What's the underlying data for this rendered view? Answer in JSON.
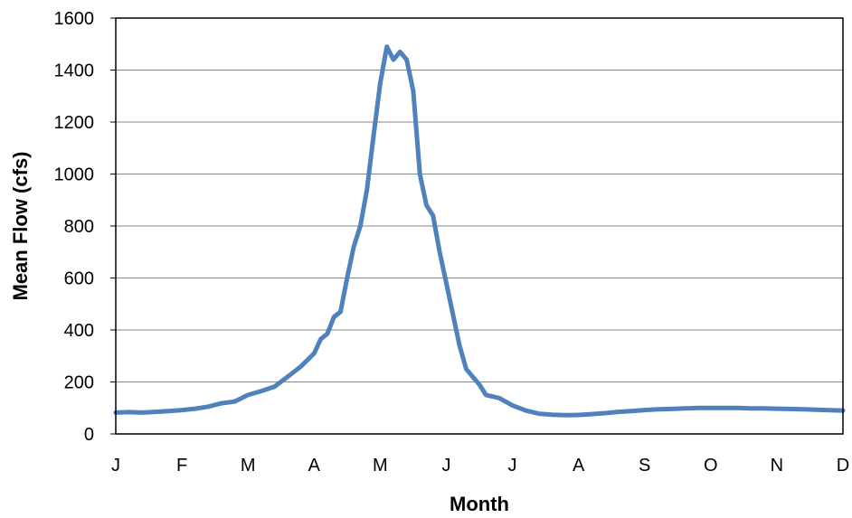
{
  "chart_data": {
    "type": "line",
    "title": "",
    "xlabel": "Month",
    "ylabel": "Mean Flow (cfs)",
    "ylim": [
      0,
      1600
    ],
    "yticks": [
      0,
      200,
      400,
      600,
      800,
      1000,
      1200,
      1400,
      1600
    ],
    "xlim": [
      0,
      11
    ],
    "x_tick_labels": [
      "J",
      "F",
      "M",
      "A",
      "M",
      "J",
      "J",
      "A",
      "S",
      "O",
      "N",
      "D"
    ],
    "grid": "horizontal",
    "legend": "none",
    "series": [
      {
        "color": "#4F81BD",
        "x": [
          0,
          0.2,
          0.4,
          0.6,
          0.8,
          1.0,
          1.2,
          1.4,
          1.6,
          1.8,
          2.0,
          2.2,
          2.4,
          2.6,
          2.8,
          3.0,
          3.1,
          3.2,
          3.3,
          3.4,
          3.5,
          3.6,
          3.7,
          3.8,
          3.9,
          4.0,
          4.1,
          4.2,
          4.3,
          4.4,
          4.5,
          4.6,
          4.7,
          4.8,
          4.9,
          5.0,
          5.1,
          5.2,
          5.3,
          5.4,
          5.5,
          5.6,
          5.8,
          6.0,
          6.2,
          6.4,
          6.6,
          6.8,
          7.0,
          7.2,
          7.4,
          7.6,
          7.8,
          8.0,
          8.2,
          8.4,
          8.6,
          8.8,
          9.0,
          9.2,
          9.4,
          9.6,
          9.8,
          10.0,
          10.2,
          10.4,
          10.6,
          10.8,
          11.0
        ],
        "y": [
          82,
          84,
          82,
          85,
          88,
          92,
          97,
          105,
          118,
          125,
          150,
          165,
          182,
          220,
          260,
          310,
          365,
          385,
          450,
          470,
          600,
          720,
          800,
          940,
          1150,
          1350,
          1490,
          1440,
          1470,
          1440,
          1320,
          1000,
          880,
          840,
          700,
          580,
          460,
          340,
          250,
          220,
          190,
          150,
          138,
          110,
          90,
          78,
          74,
          72,
          73,
          76,
          80,
          85,
          88,
          92,
          95,
          96,
          98,
          100,
          100,
          100,
          100,
          98,
          98,
          97,
          96,
          95,
          93,
          91,
          90
        ]
      }
    ]
  }
}
